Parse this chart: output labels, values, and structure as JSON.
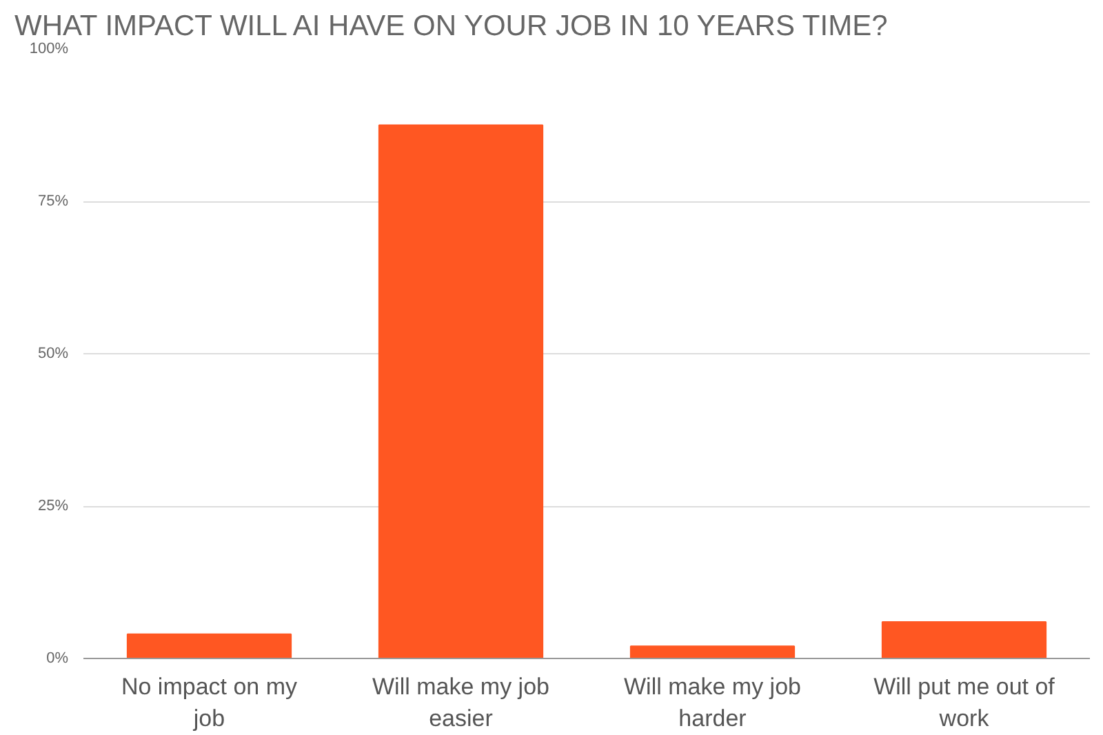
{
  "chart_data": {
    "type": "bar",
    "title": "WHAT IMPACT WILL AI HAVE ON YOUR JOB IN 10 YEARS TIME?",
    "categories": [
      "No impact on my job",
      "Will make my job easier",
      "Will make my job harder",
      "Will put me out of work"
    ],
    "values": [
      4,
      87.5,
      2,
      6
    ],
    "color": "#ff5722",
    "ylim": [
      0,
      100
    ],
    "yticks": [
      {
        "value": 0,
        "label": "0%"
      },
      {
        "value": 25,
        "label": "25%"
      },
      {
        "value": 50,
        "label": "50%"
      },
      {
        "value": 75,
        "label": "75%"
      },
      {
        "value": 100,
        "label": "100%"
      }
    ],
    "grid": "y"
  }
}
